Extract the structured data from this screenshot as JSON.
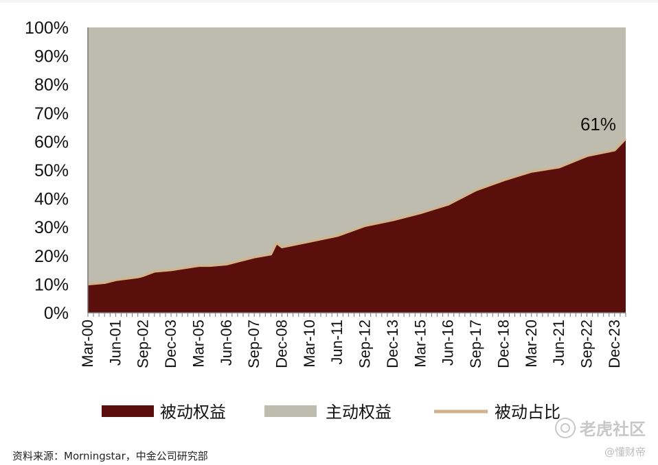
{
  "chart_data": {
    "type": "area",
    "ylim": [
      0,
      100
    ],
    "yticks": [
      "0%",
      "10%",
      "20%",
      "30%",
      "40%",
      "50%",
      "60%",
      "70%",
      "80%",
      "90%",
      "100%"
    ],
    "x_labels": [
      "Mar-00",
      "Jun-01",
      "Sep-02",
      "Dec-03",
      "Mar-05",
      "Jun-06",
      "Sep-07",
      "Dec-08",
      "Mar-10",
      "Jun-11",
      "Sep-12",
      "Dec-13",
      "Mar-15",
      "Jun-16",
      "Sep-17",
      "Dec-18",
      "Mar-20",
      "Jun-21",
      "Sep-22",
      "Dec-23"
    ],
    "x_start": "Mar-00",
    "x_end": "Jun-24",
    "series": [
      {
        "name": "被动权益",
        "color": "#5a0f0c",
        "style": "area"
      },
      {
        "name": "主动权益",
        "color": "#bebcae",
        "style": "area"
      },
      {
        "name": "被动占比",
        "color": "#d2b48c",
        "style": "line"
      }
    ],
    "passive_share": [
      {
        "x": "Mar-00",
        "y": 10
      },
      {
        "x": "Dec-00",
        "y": 10.5
      },
      {
        "x": "Jun-01",
        "y": 11.5
      },
      {
        "x": "Jun-02",
        "y": 12.5
      },
      {
        "x": "Sep-02",
        "y": 13
      },
      {
        "x": "Mar-03",
        "y": 14.5
      },
      {
        "x": "Dec-03",
        "y": 15
      },
      {
        "x": "Mar-05",
        "y": 16.5
      },
      {
        "x": "Sep-05",
        "y": 16.5
      },
      {
        "x": "Jun-06",
        "y": 17
      },
      {
        "x": "Mar-07",
        "y": 18.5
      },
      {
        "x": "Sep-07",
        "y": 19.5
      },
      {
        "x": "Jun-08",
        "y": 20.5
      },
      {
        "x": "Sep-08",
        "y": 24.5
      },
      {
        "x": "Dec-08",
        "y": 23
      },
      {
        "x": "Mar-10",
        "y": 25
      },
      {
        "x": "Jun-11",
        "y": 27
      },
      {
        "x": "Sep-12",
        "y": 30.5
      },
      {
        "x": "Dec-13",
        "y": 32.5
      },
      {
        "x": "Mar-15",
        "y": 35
      },
      {
        "x": "Jun-16",
        "y": 38
      },
      {
        "x": "Sep-17",
        "y": 43
      },
      {
        "x": "Dec-18",
        "y": 46.5
      },
      {
        "x": "Mar-20",
        "y": 49.5
      },
      {
        "x": "Jun-21",
        "y": 51
      },
      {
        "x": "Sep-22",
        "y": 55
      },
      {
        "x": "Dec-23",
        "y": 57
      },
      {
        "x": "Jun-24",
        "y": 61
      }
    ],
    "annotation": {
      "text": "61%",
      "x": "Jun-24",
      "y": 61
    }
  },
  "source_text": "资料来源：Morningstar，中金公司研究部",
  "watermark": {
    "brand": "老虎社区",
    "author": "@懂财帝"
  }
}
